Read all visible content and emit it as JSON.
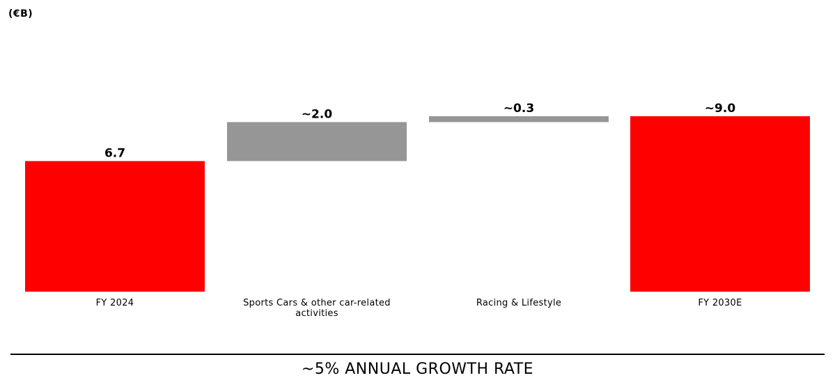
{
  "unit_label": "(€B)",
  "footer_text": "~5% ANNUAL GROWTH RATE",
  "colors": {
    "total": "#ff0000",
    "increment": "#969696",
    "text": "#000000"
  },
  "chart_data": {
    "type": "bar",
    "subtype": "waterfall",
    "title": "",
    "xlabel": "",
    "ylabel": "(€B)",
    "categories": [
      "FY 2024",
      "Sports Cars & other car-related activities",
      "Racing & Lifestyle",
      "FY 2030E"
    ],
    "bars": [
      {
        "category": "FY 2024",
        "kind": "total",
        "start": 0,
        "end": 6.7,
        "label": "6.7"
      },
      {
        "category": "Sports Cars & other car-related activities",
        "kind": "increment",
        "start": 6.7,
        "end": 8.7,
        "label": "~2.0"
      },
      {
        "category": "Racing & Lifestyle",
        "kind": "increment",
        "start": 8.7,
        "end": 9.0,
        "label": "~0.3"
      },
      {
        "category": "FY 2030E",
        "kind": "total",
        "start": 0,
        "end": 9.0,
        "label": "~9.0"
      }
    ],
    "ylim": [
      0,
      10.5
    ],
    "grid": false,
    "legend": "none"
  }
}
